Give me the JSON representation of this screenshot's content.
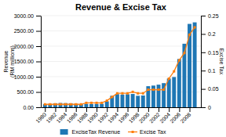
{
  "chart_data": {
    "type": "bar",
    "title": "Revenue & Excise Tax",
    "ylabel": "Revenue\n(RM millions)",
    "y2label": "Excise Tax",
    "x": [
      1980,
      1981,
      1982,
      1983,
      1984,
      1985,
      1986,
      1987,
      1988,
      1989,
      1990,
      1991,
      1992,
      1993,
      1994,
      1995,
      1996,
      1997,
      1998,
      1999,
      2000,
      2001,
      2002,
      2003,
      2004,
      2005,
      2006,
      2007,
      2008,
      2009
    ],
    "series": [
      {
        "name": "ExciseTax Revenue",
        "type": "bar",
        "values": [
          100,
          110,
          130,
          140,
          135,
          130,
          115,
          100,
          110,
          105,
          110,
          115,
          195,
          375,
          430,
          415,
          425,
          435,
          375,
          385,
          690,
          710,
          740,
          790,
          940,
          990,
          1580,
          2080,
          2730,
          2780
        ]
      },
      {
        "name": "Excise Tax",
        "type": "line",
        "marker": "square",
        "axis": "y2",
        "values": [
          0.008,
          0.008,
          0.008,
          0.008,
          0.008,
          0.008,
          0.008,
          0.008,
          0.012,
          0.012,
          0.012,
          0.012,
          0.018,
          0.028,
          0.038,
          0.038,
          0.038,
          0.042,
          0.038,
          0.038,
          0.048,
          0.048,
          0.048,
          0.048,
          0.078,
          0.098,
          0.128,
          0.148,
          0.198,
          0.218
        ]
      }
    ],
    "xlim": [
      1979.2,
      2010.2
    ],
    "xticks": [
      1980,
      1982,
      1984,
      1986,
      1988,
      1990,
      1992,
      1994,
      1996,
      1998,
      2000,
      2002,
      2004,
      2006,
      2008
    ],
    "ylim": [
      0,
      3000
    ],
    "yticks": [
      {
        "value": 0,
        "label": "0.00"
      },
      {
        "value": 500,
        "label": "500.00"
      },
      {
        "value": 1000,
        "label": "1000.00"
      },
      {
        "value": 1500,
        "label": "1500.00"
      },
      {
        "value": 2000,
        "label": "2000.00"
      },
      {
        "value": 2500,
        "label": "2500.00"
      },
      {
        "value": 3000,
        "label": "3000.00"
      }
    ],
    "y2lim": [
      0,
      0.25
    ],
    "y2ticks": [
      0,
      0.05,
      0.1,
      0.15,
      0.2,
      0.25
    ],
    "grid": true,
    "legend": "bottom"
  }
}
